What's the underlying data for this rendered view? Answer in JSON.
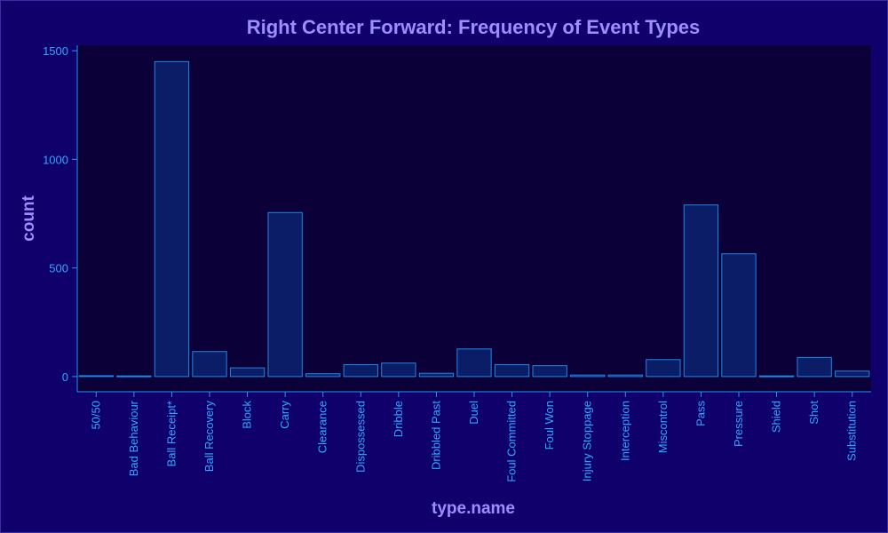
{
  "chart_data": {
    "type": "bar",
    "title": "Right Center Forward: Frequency of Event Types",
    "xlabel": "type.name",
    "ylabel": "count",
    "ylim": [
      -70,
      1525
    ],
    "yticks": [
      0,
      500,
      1000,
      1500
    ],
    "categories": [
      "50/50",
      "Bad Behaviour",
      "Ball Receipt*",
      "Ball Recovery",
      "Block",
      "Carry",
      "Clearance",
      "Dispossessed",
      "Dribble",
      "Dribbled Past",
      "Duel",
      "Foul Committed",
      "Foul Won",
      "Injury Stoppage",
      "Interception",
      "Miscontrol",
      "Pass",
      "Pressure",
      "Shield",
      "Shot",
      "Substitution"
    ],
    "values": [
      4,
      3,
      1450,
      115,
      40,
      755,
      13,
      55,
      62,
      15,
      127,
      55,
      50,
      7,
      7,
      78,
      790,
      565,
      3,
      88,
      25
    ],
    "grid": false,
    "legend": "none",
    "colors": {
      "background": "#10006b",
      "plot_background": "#0b0038",
      "bar_fill": "#0b1d66",
      "bar_stroke": "#1e88e5",
      "tick_text": "#2ea8ff",
      "title_text": "#9f8cff"
    }
  }
}
